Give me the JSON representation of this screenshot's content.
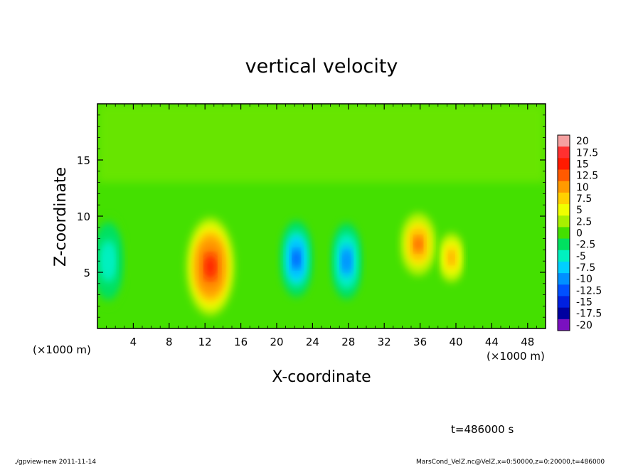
{
  "chart_data": {
    "type": "heatmap",
    "title": "vertical velocity",
    "xlabel": "X-coordinate",
    "ylabel": "Z-coordinate",
    "x_unit_left": "(×1000 m)",
    "x_unit_right": "(×1000 m)",
    "xlim": [
      0,
      50
    ],
    "ylim": [
      0,
      20
    ],
    "x_ticks": [
      "4",
      "8",
      "12",
      "16",
      "20",
      "24",
      "28",
      "32",
      "36",
      "40",
      "44",
      "48"
    ],
    "x_tick_values": [
      4,
      8,
      12,
      16,
      20,
      24,
      28,
      32,
      36,
      40,
      44,
      48
    ],
    "y_ticks": [
      "5",
      "10",
      "15"
    ],
    "y_tick_values": [
      5,
      10,
      15
    ],
    "colorbar": {
      "labels": [
        "20",
        "17.5",
        "15",
        "12.5",
        "10",
        "7.5",
        "5",
        "2.5",
        "0",
        "-2.5",
        "-5",
        "-7.5",
        "-10",
        "-12.5",
        "-15",
        "-17.5",
        "-20"
      ],
      "colors": [
        "#f5a0a0",
        "#ff3030",
        "#ff1a00",
        "#ff5a00",
        "#ff9a00",
        "#ffd000",
        "#f0ff00",
        "#a8f000",
        "#44e000",
        "#00e060",
        "#00f0c0",
        "#00d0ff",
        "#0090ff",
        "#0050ff",
        "#0020e0",
        "#0000a0",
        "#7a10c0"
      ]
    },
    "features": [
      {
        "x": 12.6,
        "z": 5.5,
        "w": -1,
        "rx": 2.6,
        "rz": 4.4,
        "peak": 15.5
      },
      {
        "x": 22.2,
        "z": 6.2,
        "w": -1,
        "rx": 1.7,
        "rz": 3.4,
        "peak": -11.5
      },
      {
        "x": 27.8,
        "z": 6.0,
        "w": -1,
        "rx": 1.6,
        "rz": 3.4,
        "peak": -10.5
      },
      {
        "x": 35.8,
        "z": 7.5,
        "w": -1,
        "rx": 1.9,
        "rz": 2.8,
        "peak": 12.0
      },
      {
        "x": 39.5,
        "z": 6.3,
        "w": -1,
        "rx": 1.3,
        "rz": 2.2,
        "peak": 9.0
      },
      {
        "x": 1.2,
        "z": 6.0,
        "w": -1,
        "rx": 1.8,
        "rz": 4.0,
        "peak": -6.0
      }
    ],
    "grid": false,
    "legend": "right"
  },
  "time_label": "t=486000 s",
  "footer_left": "./gpview-new  2011-11-14",
  "footer_right": "MarsCond_VelZ.nc@VelZ,x=0:50000,z=0:20000,t=486000"
}
